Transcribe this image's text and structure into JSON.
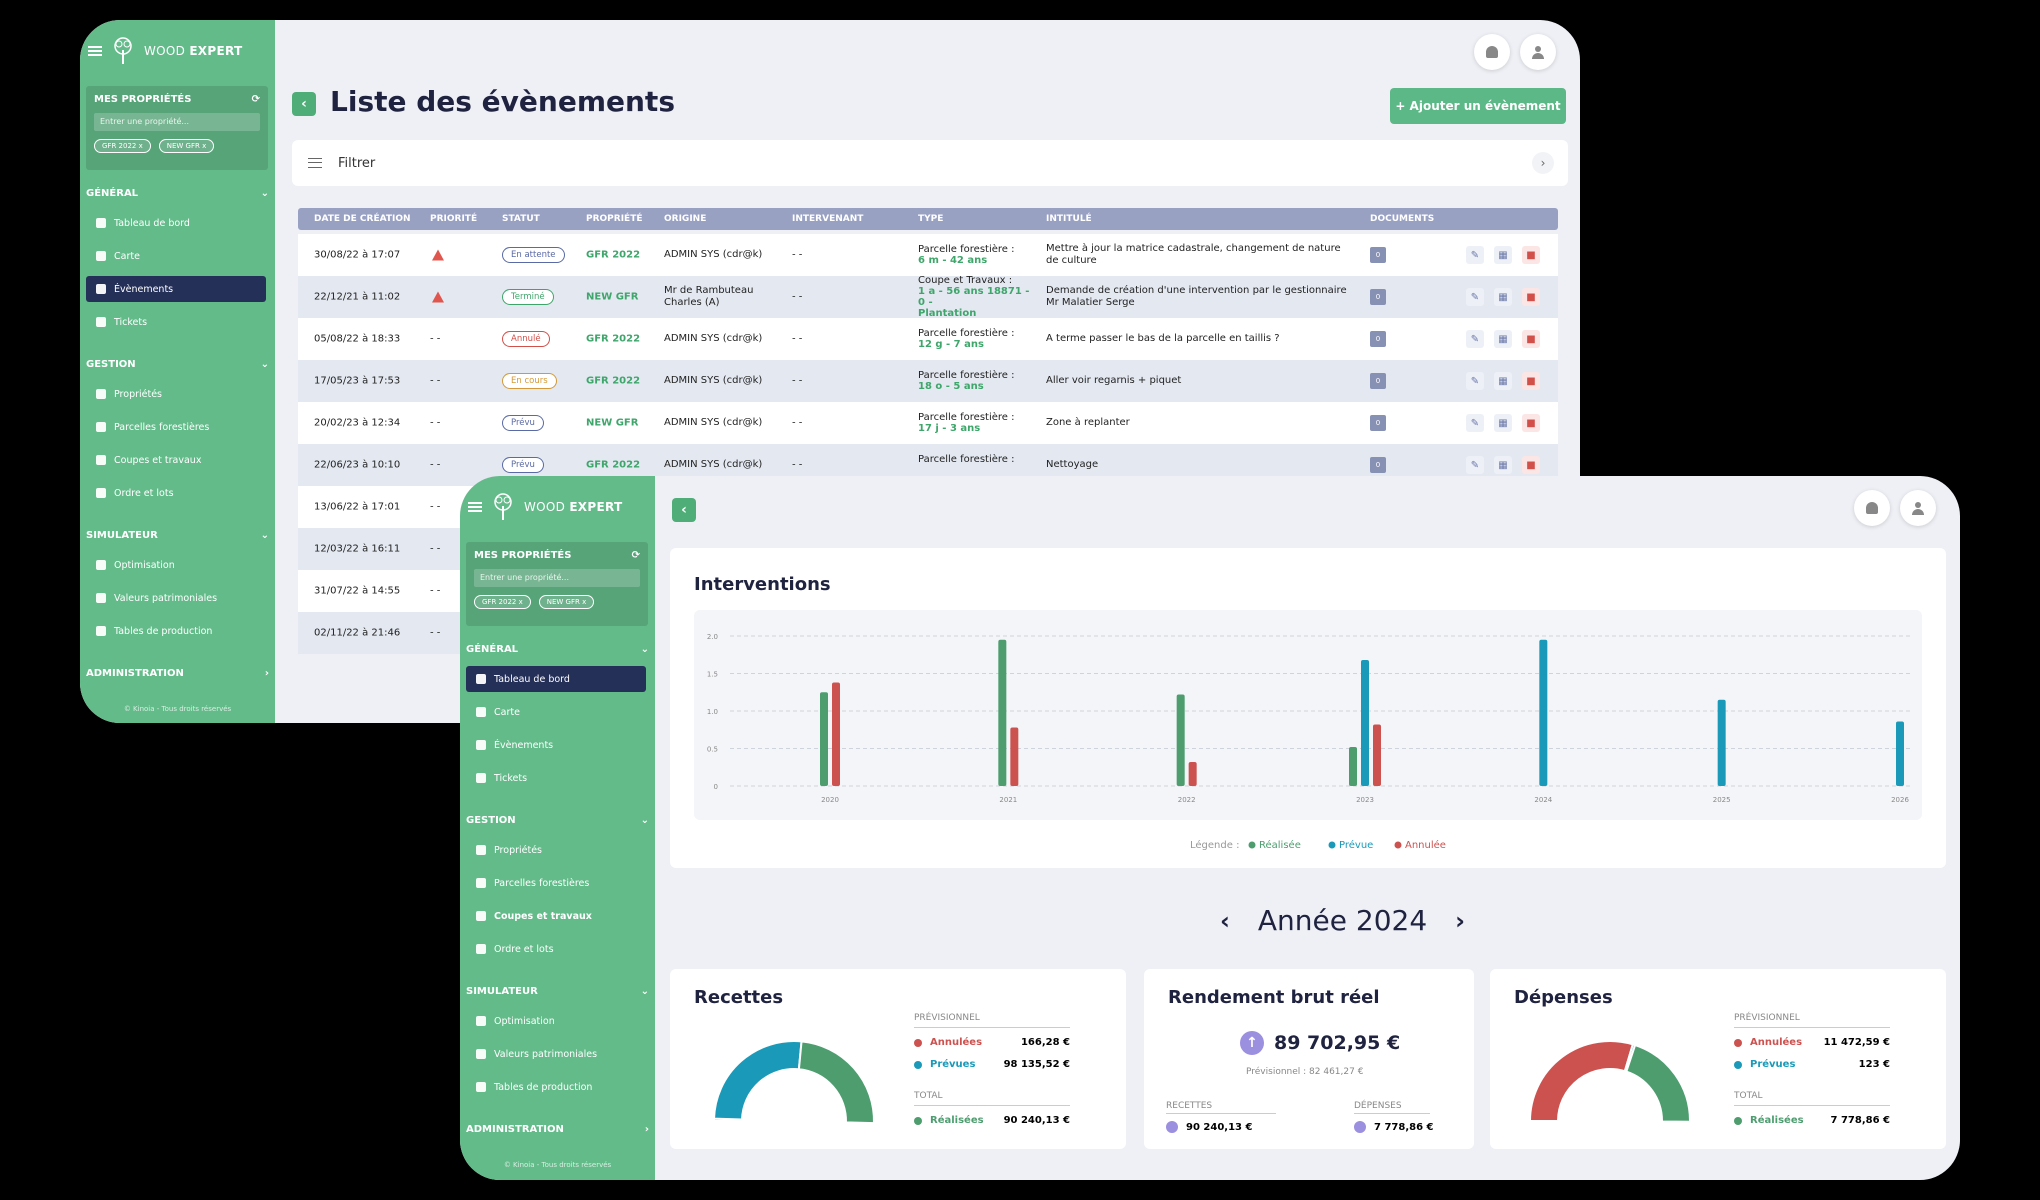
{
  "brand": {
    "name_light": "WOOD ",
    "name_bold": "EXPERT"
  },
  "sidebar": {
    "props_title": "MES PROPRIÉTÉS",
    "props_placeholder": "Entrer une propriété...",
    "chips": [
      "GFR 2022",
      "NEW GFR"
    ],
    "chip_close": "x",
    "sections": {
      "general": "GÉNÉRAL",
      "gestion": "GESTION",
      "simulateur": "SIMULATEUR",
      "administration": "ADMINISTRATION"
    },
    "general_items": [
      "Tableau de bord",
      "Carte",
      "Évènements",
      "Tickets"
    ],
    "gestion_items": [
      "Propriétés",
      "Parcelles forestières",
      "Coupes et travaux",
      "Ordre et lots"
    ],
    "simulateur_items": [
      "Optimisation",
      "Valeurs patrimoniales",
      "Tables de production"
    ],
    "copyright": "© Kinoia - Tous droits réservés"
  },
  "events_page": {
    "title": "Liste des évènements",
    "add_button": "+ Ajouter un évènement",
    "filter_label": "Filtrer",
    "columns": [
      "DATE DE CRÉATION",
      "PRIORITÉ",
      "STATUT",
      "PROPRIÉTÉ",
      "ORIGINE",
      "INTERVENANT",
      "TYPE",
      "INTITULÉ",
      "DOCUMENTS"
    ],
    "rows": [
      {
        "date": "30/08/22 à 17:07",
        "warn": true,
        "priority": "",
        "status": "En attente",
        "status_color": "#5a6aa6",
        "prop": "GFR 2022",
        "origin": "ADMIN SYS (cdr@k)",
        "interv": "- -",
        "type1": "Parcelle forestière :",
        "type2": "6 m - 42 ans",
        "type3": "",
        "title": "Mettre à jour la matrice cadastrale, changement de nature de culture",
        "doc": "0"
      },
      {
        "date": "22/12/21 à 11:02",
        "warn": true,
        "priority": "",
        "status": "Terminé",
        "status_color": "#3fa66b",
        "prop": "NEW GFR",
        "origin": "Mr de Rambuteau Charles (A)",
        "interv": "- -",
        "type1": "Coupe et Travaux :",
        "type2": "1 a - 56 ans 18871 - 0 -",
        "type3": "Plantation",
        "title": "Demande de création d'une intervention par le gestionnaire Mr Malatier Serge",
        "doc": "0"
      },
      {
        "date": "05/08/22 à 18:33",
        "warn": false,
        "priority": "- -",
        "status": "Annulé",
        "status_color": "#d2504a",
        "prop": "GFR 2022",
        "origin": "ADMIN SYS (cdr@k)",
        "interv": "- -",
        "type1": "Parcelle forestière :",
        "type2": "12 g - 7 ans",
        "type3": "",
        "title": "A terme passer le bas de la parcelle en taillis ?",
        "doc": "0"
      },
      {
        "date": "17/05/23 à 17:53",
        "warn": false,
        "priority": "- -",
        "status": "En cours",
        "status_color": "#d49a3a",
        "prop": "GFR 2022",
        "origin": "ADMIN SYS (cdr@k)",
        "interv": "- -",
        "type1": "Parcelle forestière :",
        "type2": "18 o - 5 ans",
        "type3": "",
        "title": "Aller voir regarnis + piquet",
        "doc": "0"
      },
      {
        "date": "20/02/23 à 12:34",
        "warn": false,
        "priority": "- -",
        "status": "Prévu",
        "status_color": "#5a6aa6",
        "prop": "NEW GFR",
        "origin": "ADMIN SYS (cdr@k)",
        "interv": "- -",
        "type1": "Parcelle forestière :",
        "type2": "17 j - 3 ans",
        "type3": "",
        "title": "Zone à replanter",
        "doc": "0"
      },
      {
        "date": "22/06/23 à 10:10",
        "warn": false,
        "priority": "- -",
        "status": "Prévu",
        "status_color": "#5a6aa6",
        "prop": "GFR 2022",
        "origin": "ADMIN SYS (cdr@k)",
        "interv": "- -",
        "type1": "Parcelle forestière :",
        "type2": "",
        "type3": "",
        "title": "Nettoyage",
        "doc": "0"
      },
      {
        "date": "13/06/22 à 17:01",
        "priority": "- -"
      },
      {
        "date": "12/03/22 à 16:11",
        "priority": "- -"
      },
      {
        "date": "31/07/22 à 14:55",
        "priority": "- -"
      },
      {
        "date": "02/11/22 à 21:46",
        "priority": "- -"
      }
    ]
  },
  "dashboard": {
    "chart_data": {
      "type": "bar",
      "title": "Interventions",
      "categories": [
        "2020",
        "2021",
        "2022",
        "2023",
        "2024",
        "2025",
        "2026"
      ],
      "ylim": [
        0,
        2.0
      ],
      "yticks": [
        "2.0",
        "1.5",
        "1.0",
        "0.5",
        "0"
      ],
      "series": [
        {
          "name": "Réalisée",
          "color": "#4d9d6f",
          "values": [
            1.25,
            1.95,
            1.22,
            0.52,
            0,
            0,
            0
          ]
        },
        {
          "name": "Prévue",
          "color": "#1a9ab8",
          "values": [
            0,
            0,
            0,
            1.68,
            1.95,
            1.15,
            0.86
          ]
        },
        {
          "name": "Annulée",
          "color": "#cc5250",
          "values": [
            1.38,
            0.78,
            0.32,
            0.82,
            0,
            0,
            0
          ]
        }
      ],
      "legend_label": "Légende :",
      "grid": true
    },
    "year_label": "Année 2024",
    "recettes": {
      "title": "Recettes",
      "prev_label": "PRÉVISIONNEL",
      "annulees_label": "Annulées",
      "annulees": "166,28 €",
      "prevues_label": "Prévues",
      "prevues": "98 135,52 €",
      "total_label": "TOTAL",
      "realisees_label": "Réalisées",
      "realisees": "90 240,13 €",
      "donut": [
        {
          "label": "Annulées",
          "value": 166.28,
          "color": "#cc5250"
        },
        {
          "label": "Prévues",
          "value": 98135.52,
          "color": "#1a9ab8"
        },
        {
          "label": "Réalisées",
          "value": 90240.13,
          "color": "#4d9d6f"
        }
      ]
    },
    "rendement": {
      "title": "Rendement brut réel",
      "value": "89 702,95 €",
      "prev": "Prévisionnel : 82 461,27 €",
      "recettes_label": "RECETTES",
      "recettes": "90 240,13 €",
      "depenses_label": "DÉPENSES",
      "depenses": "7 778,86 €"
    },
    "depenses": {
      "title": "Dépenses",
      "prev_label": "PRÉVISIONNEL",
      "annulees_label": "Annulées",
      "annulees": "11 472,59 €",
      "prevues_label": "Prévues",
      "prevues": "123 €",
      "total_label": "TOTAL",
      "realisees_label": "Réalisées",
      "realisees": "7 778,86 €",
      "donut": [
        {
          "label": "Annulées",
          "value": 11472.59,
          "color": "#cc5250"
        },
        {
          "label": "Prévues",
          "value": 123,
          "color": "#1a9ab8"
        },
        {
          "label": "Réalisées",
          "value": 7778.86,
          "color": "#4d9d6f"
        }
      ]
    }
  },
  "colors": {
    "sidebar": "#64bb8a",
    "active_nav": "#253058",
    "accent_green": "#3fa66b"
  },
  "icons": [
    "menu-icon",
    "tree-logo-icon",
    "refresh-icon",
    "chevron-down-icon",
    "bell-icon",
    "user-icon",
    "back-arrow-icon",
    "filter-icon",
    "chevron-right-icon",
    "warning-icon",
    "edit-icon",
    "map-icon",
    "trash-icon",
    "arrow-up-icon"
  ]
}
